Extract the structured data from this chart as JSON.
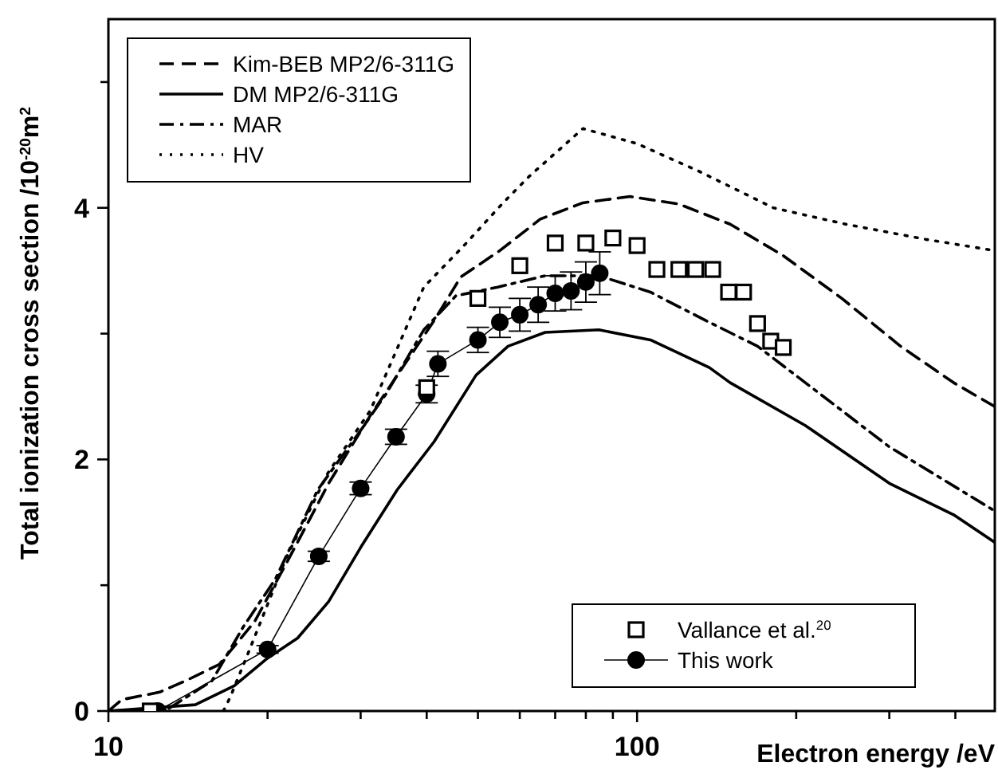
{
  "chart_data": {
    "type": "line",
    "xlabel": "Electron energy /eV",
    "ylabel": "Total ionization cross section /10$^{-20}$m$^{2}$",
    "log": "x",
    "xlim": [
      10,
      475
    ],
    "ylim": [
      0,
      5.5
    ],
    "xticks": [
      10,
      {
        "value": 20,
        "label": null
      },
      {
        "value": 30,
        "label": null
      },
      {
        "value": 40,
        "label": null
      },
      {
        "value": 50,
        "label": null
      },
      {
        "value": 60,
        "label": null
      },
      {
        "value": 70,
        "label": null
      },
      {
        "value": 80,
        "label": null
      },
      {
        "value": 90,
        "label": null
      },
      100,
      {
        "value": 200,
        "label": null
      },
      {
        "value": 300,
        "label": null
      },
      {
        "value": 400,
        "label": null
      }
    ],
    "yticks": [
      0,
      {
        "value": 1,
        "label": null
      },
      2,
      {
        "value": 3,
        "label": null
      },
      4,
      {
        "value": 5,
        "label": null
      }
    ],
    "legend": "top left",
    "grid": false,
    "series": [
      {
        "name": "Kim-BEB MP2/6-311G",
        "line_style": "dashed",
        "marker": "none",
        "color": "#000000",
        "x": [
          10,
          10.6,
          12.5,
          14,
          16.2,
          18.9,
          22,
          26.1,
          31.3,
          41.4,
          46.4,
          55,
          65.6,
          79,
          97,
          120,
          150,
          189,
          244,
          315,
          397,
          475
        ],
        "values": [
          0,
          0.09,
          0.15,
          0.24,
          0.37,
          0.71,
          1.22,
          1.81,
          2.35,
          3.11,
          3.45,
          3.66,
          3.91,
          4.04,
          4.09,
          4.03,
          3.87,
          3.62,
          3.28,
          2.9,
          2.61,
          2.42
        ]
      },
      {
        "name": "DM MP2/6-311G",
        "line_style": "solid",
        "marker": "none",
        "color": "#000000",
        "x": [
          10,
          14.6,
          17.3,
          20,
          22.8,
          26.1,
          30,
          35.2,
          41.3,
          49.6,
          57,
          67,
          84.7,
          106,
          137,
          150,
          208,
          300,
          397,
          475
        ],
        "values": [
          0,
          0.05,
          0.2,
          0.42,
          0.58,
          0.87,
          1.3,
          1.76,
          2.14,
          2.67,
          2.9,
          3.01,
          3.03,
          2.95,
          2.73,
          2.61,
          2.27,
          1.81,
          1.56,
          1.34
        ]
      },
      {
        "name": "MAR",
        "line_style": "dashdot",
        "marker": "none",
        "color": "#000000",
        "x": [
          10,
          13,
          15.7,
          18,
          20.7,
          24.9,
          30,
          33.5,
          39.5,
          45.4,
          54.5,
          67,
          84.7,
          106,
          134,
          169,
          222,
          300,
          475
        ],
        "values": [
          0,
          0.02,
          0.24,
          0.67,
          1.05,
          1.76,
          2.23,
          2.52,
          3.03,
          3.3,
          3.37,
          3.46,
          3.46,
          3.33,
          3.11,
          2.9,
          2.52,
          2.1,
          1.59
        ]
      },
      {
        "name": "HV",
        "line_style": "dotted",
        "marker": "none",
        "color": "#000000",
        "x": [
          16.5,
          17,
          18.5,
          21.7,
          26,
          31.3,
          39.5,
          47.3,
          55.8,
          62.5,
          79,
          100,
          131,
          181,
          248,
          351,
          475
        ],
        "values": [
          0,
          0.11,
          0.49,
          1.22,
          1.89,
          2.39,
          3.37,
          3.71,
          4.04,
          4.25,
          4.63,
          4.51,
          4.29,
          4,
          3.87,
          3.75,
          3.66
        ]
      },
      {
        "name": "Vallance et al.$^{20}$",
        "type": "scatter",
        "marker": "square",
        "color": "#000000",
        "x": [
          12,
          40,
          50,
          60,
          70,
          80,
          90,
          100,
          109,
          120,
          129,
          139,
          149,
          159,
          169,
          179,
          189
        ],
        "values": [
          0,
          2.57,
          3.28,
          3.54,
          3.72,
          3.72,
          3.76,
          3.7,
          3.51,
          3.51,
          3.51,
          3.51,
          3.33,
          3.33,
          3.08,
          2.94,
          2.89
        ]
      },
      {
        "name": "This work",
        "line_style": "solid",
        "marker": "circle",
        "color": "#000000",
        "x": [
          12.4,
          20,
          25,
          30,
          35,
          40,
          42,
          50,
          55,
          60,
          65,
          70,
          75,
          80,
          85
        ],
        "values": [
          0,
          0.49,
          1.23,
          1.77,
          2.18,
          2.52,
          2.76,
          2.95,
          3.09,
          3.15,
          3.23,
          3.32,
          3.34,
          3.41,
          3.48
        ],
        "errors": [
          null,
          0.03,
          0.04,
          0.05,
          0.06,
          0.07,
          0.1,
          0.1,
          0.12,
          0.13,
          0.14,
          0.14,
          0.15,
          0.16,
          0.17
        ]
      }
    ]
  }
}
